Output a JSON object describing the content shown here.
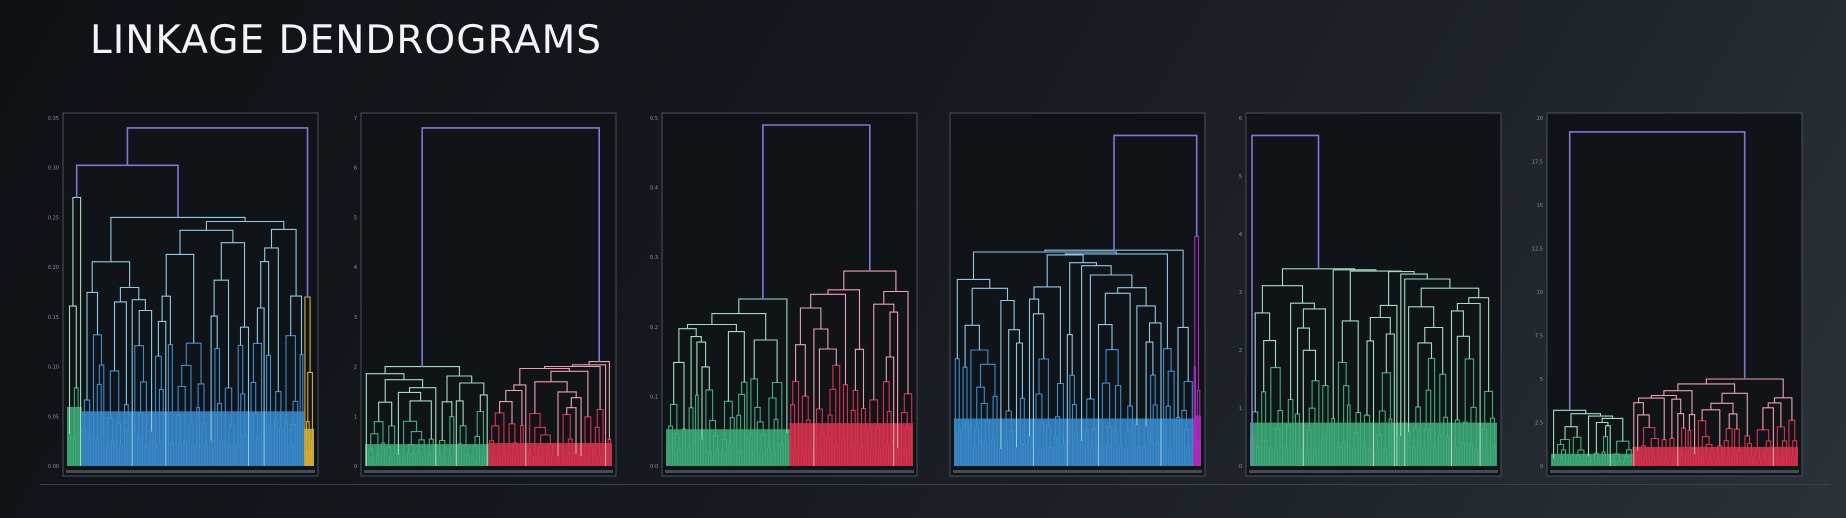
{
  "page": {
    "title": "LINKAGE DENDROGRAMS"
  },
  "colors": {
    "root": "#7b78d6",
    "blue": "#3a8dd0",
    "blue_light": "#8ec9e6",
    "green": "#3fae7a",
    "green_light": "#9fe0bd",
    "red": "#d9334f",
    "red_light": "#f0a0ac",
    "yellow": "#d8b03a",
    "magenta": "#b02bc2",
    "panel_bg": "#101418",
    "panel_border": "#4a5159"
  },
  "chart_data": [
    {
      "type": "dendrogram",
      "ylim": [
        0,
        0.35
      ],
      "ticks": [
        "0.00",
        "0.05",
        "0.10",
        "0.15",
        "0.20",
        "0.25",
        "0.30",
        "0.35"
      ],
      "root_height": 0.34,
      "clusters": [
        {
          "color": "green",
          "share": 0.06,
          "top": 0.27
        },
        {
          "color": "blue",
          "share": 0.9,
          "top": 0.25
        },
        {
          "color": "yellow",
          "share": 0.04,
          "top": 0.17
        }
      ]
    },
    {
      "type": "dendrogram",
      "ylim": [
        0,
        7
      ],
      "ticks": [
        "0",
        "1",
        "2",
        "3",
        "4",
        "5",
        "6",
        "7"
      ],
      "root_height": 6.8,
      "clusters": [
        {
          "color": "green",
          "share": 0.5,
          "top": 2.0
        },
        {
          "color": "red",
          "share": 0.5,
          "top": 2.1
        }
      ]
    },
    {
      "type": "dendrogram",
      "ylim": [
        0,
        0.5
      ],
      "ticks": [
        "0.0",
        "0.1",
        "0.2",
        "0.3",
        "0.4",
        "0.5"
      ],
      "root_height": 0.49,
      "clusters": [
        {
          "color": "green",
          "share": 0.5,
          "top": 0.24
        },
        {
          "color": "red",
          "share": 0.5,
          "top": 0.28
        }
      ]
    },
    {
      "type": "dendrogram",
      "ylim": [
        0,
        1
      ],
      "ticks": [],
      "root_height": 0.95,
      "clusters": [
        {
          "color": "blue",
          "share": 0.97,
          "top": 0.62
        },
        {
          "color": "magenta",
          "share": 0.03,
          "top": 0.66
        }
      ]
    },
    {
      "type": "dendrogram",
      "ylim": [
        0,
        6
      ],
      "ticks": [
        "0",
        "1",
        "2",
        "3",
        "4",
        "5",
        "6"
      ],
      "root_height": 5.7,
      "clusters": [
        {
          "color": "green",
          "share": 1.0,
          "top": 3.4
        }
      ]
    },
    {
      "type": "dendrogram",
      "ylim": [
        0,
        20
      ],
      "ticks": [
        "0",
        "2.5",
        "5",
        "7.5",
        "10",
        "12.5",
        "15",
        "17.5",
        "20"
      ],
      "root_height": 19.2,
      "clusters": [
        {
          "color": "green",
          "share": 0.33,
          "top": 3.2
        },
        {
          "color": "red",
          "share": 0.67,
          "top": 5.0
        }
      ]
    }
  ]
}
